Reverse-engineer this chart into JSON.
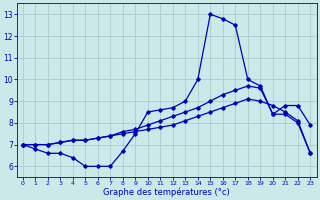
{
  "title": "Graphe des températures (°c)",
  "bg_color": "#cce8e8",
  "grid_color": "#aacccc",
  "line_color": "#0000bb",
  "xlim": [
    -0.5,
    23.5
  ],
  "ylim": [
    5.5,
    13.5
  ],
  "xticks": [
    0,
    1,
    2,
    3,
    4,
    5,
    6,
    7,
    8,
    9,
    10,
    11,
    12,
    13,
    14,
    15,
    16,
    17,
    18,
    19,
    20,
    21,
    22,
    23
  ],
  "yticks": [
    6,
    7,
    8,
    9,
    10,
    11,
    12,
    13
  ],
  "line1_x": [
    0,
    1,
    2,
    3,
    4,
    5,
    6,
    7,
    8,
    9,
    10,
    11,
    12,
    13,
    14,
    15,
    16,
    17,
    18,
    19,
    20,
    21,
    22,
    23
  ],
  "line1_y": [
    7.0,
    6.8,
    6.6,
    6.6,
    6.4,
    6.0,
    6.0,
    6.0,
    6.7,
    7.5,
    8.5,
    8.6,
    8.7,
    9.0,
    10.0,
    13.0,
    12.8,
    12.5,
    10.0,
    9.7,
    8.4,
    8.8,
    8.8,
    7.9
  ],
  "line2_x": [
    0,
    1,
    2,
    3,
    4,
    5,
    6,
    7,
    8,
    9,
    10,
    11,
    12,
    13,
    14,
    15,
    16,
    17,
    18,
    19,
    20,
    21,
    22,
    23
  ],
  "line2_y": [
    7.0,
    7.0,
    7.0,
    7.1,
    7.2,
    7.2,
    7.3,
    7.4,
    7.6,
    7.7,
    7.9,
    8.1,
    8.3,
    8.5,
    8.7,
    9.0,
    9.3,
    9.5,
    9.7,
    9.6,
    8.4,
    8.4,
    8.0,
    6.6
  ],
  "line3_x": [
    0,
    1,
    2,
    3,
    4,
    5,
    6,
    7,
    8,
    9,
    10,
    11,
    12,
    13,
    14,
    15,
    16,
    17,
    18,
    19,
    20,
    21,
    22,
    23
  ],
  "line3_y": [
    7.0,
    7.0,
    7.0,
    7.1,
    7.2,
    7.2,
    7.3,
    7.4,
    7.5,
    7.6,
    7.7,
    7.8,
    7.9,
    8.1,
    8.3,
    8.5,
    8.7,
    8.9,
    9.1,
    9.0,
    8.8,
    8.5,
    8.1,
    6.6
  ]
}
